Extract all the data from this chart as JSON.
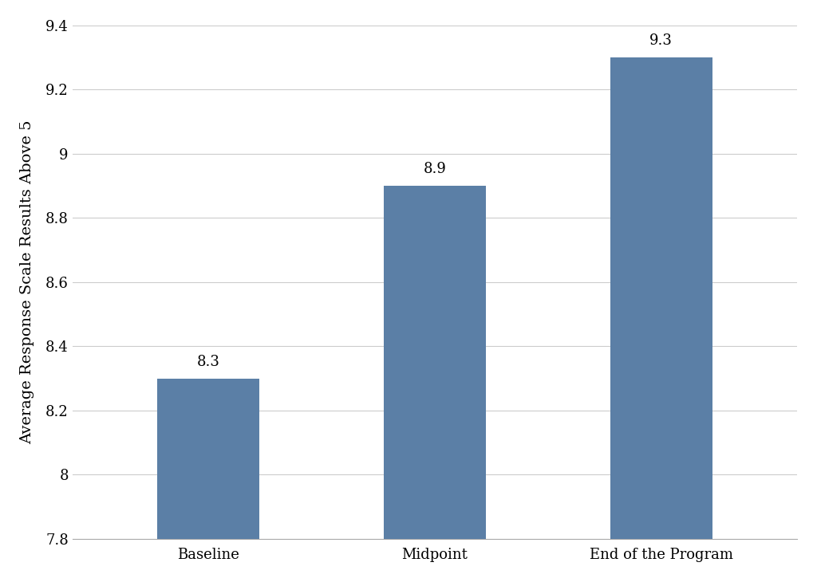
{
  "categories": [
    "Baseline",
    "Midpoint",
    "End of the Program"
  ],
  "values": [
    8.3,
    8.9,
    9.3
  ],
  "bar_color": "#5b7fa6",
  "ylabel": "Average Response Scale Results Above 5",
  "ylim": [
    7.8,
    9.4
  ],
  "yticks": [
    7.8,
    8.0,
    8.2,
    8.4,
    8.6,
    8.8,
    9.0,
    9.2,
    9.4
  ],
  "yticklabels": [
    "7.8",
    "8",
    "8.2",
    "8.4",
    "8.6",
    "8.8",
    "9",
    "9.2",
    "9.4"
  ],
  "bar_width": 0.45,
  "label_fontsize": 14,
  "tick_fontsize": 13,
  "value_label_fontsize": 13,
  "background_color": "#ffffff",
  "grid_color": "#cccccc",
  "bar_bottom": 7.8
}
